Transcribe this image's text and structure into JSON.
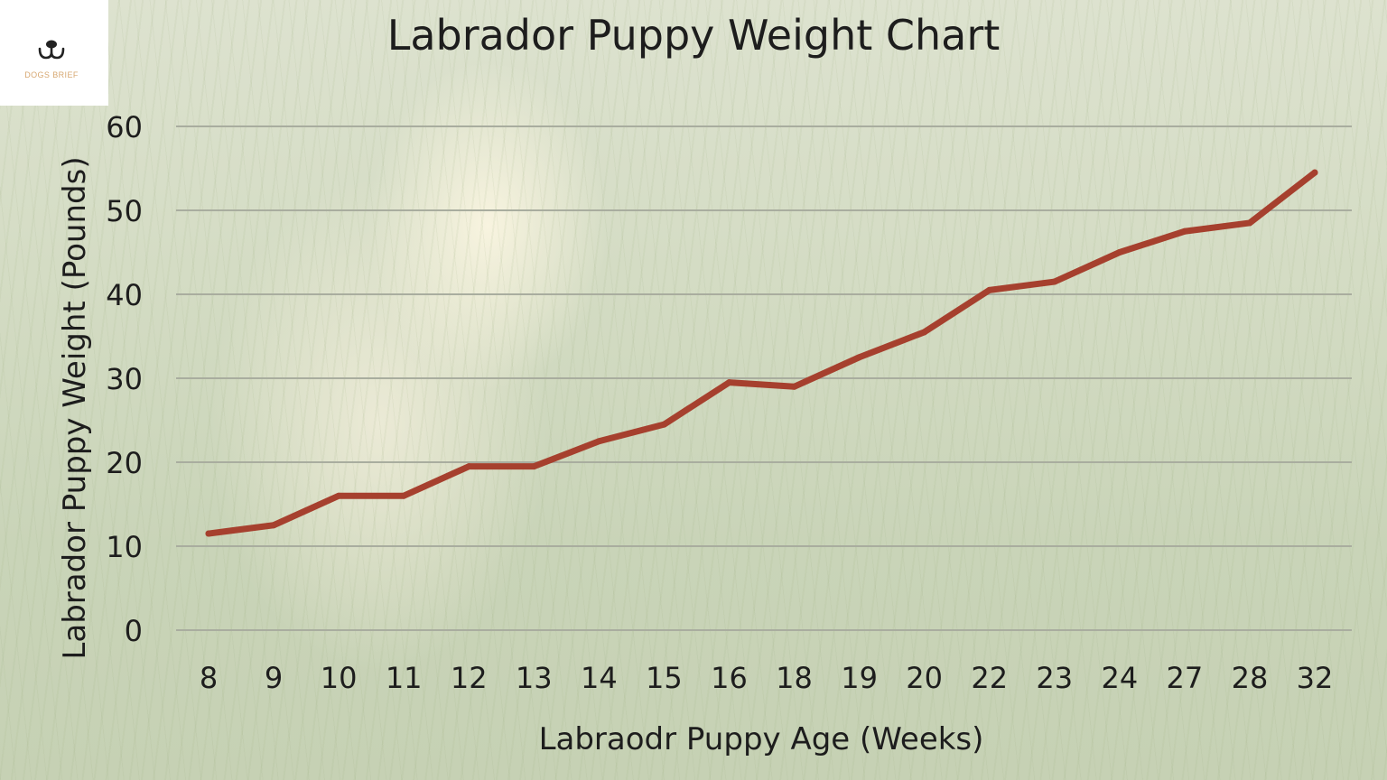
{
  "logo": {
    "text": "DOGS BRIEF",
    "icon": "dog-face-icon",
    "color": "#d7a872"
  },
  "chart_data": {
    "type": "line",
    "title": "Labrador Puppy Weight Chart",
    "xlabel": "Labraodr Puppy Age (Weeks)",
    "ylabel": "Labrador Puppy Weight (Pounds)",
    "categories": [
      "8",
      "9",
      "10",
      "11",
      "12",
      "13",
      "14",
      "15",
      "16",
      "18",
      "19",
      "20",
      "22",
      "23",
      "24",
      "27",
      "28",
      "32"
    ],
    "series": [
      {
        "values": [
          11.5,
          12.5,
          16,
          16,
          19.5,
          19.5,
          22.5,
          24.5,
          29.5,
          29,
          32.5,
          35.5,
          40.5,
          41.5,
          45,
          47.5,
          48.5,
          54.5
        ],
        "color": "#a6402e"
      }
    ],
    "yticks": [
      0,
      10,
      20,
      30,
      40,
      50,
      60
    ],
    "ylim": [
      0,
      60
    ],
    "grid": true,
    "legend": "none"
  }
}
